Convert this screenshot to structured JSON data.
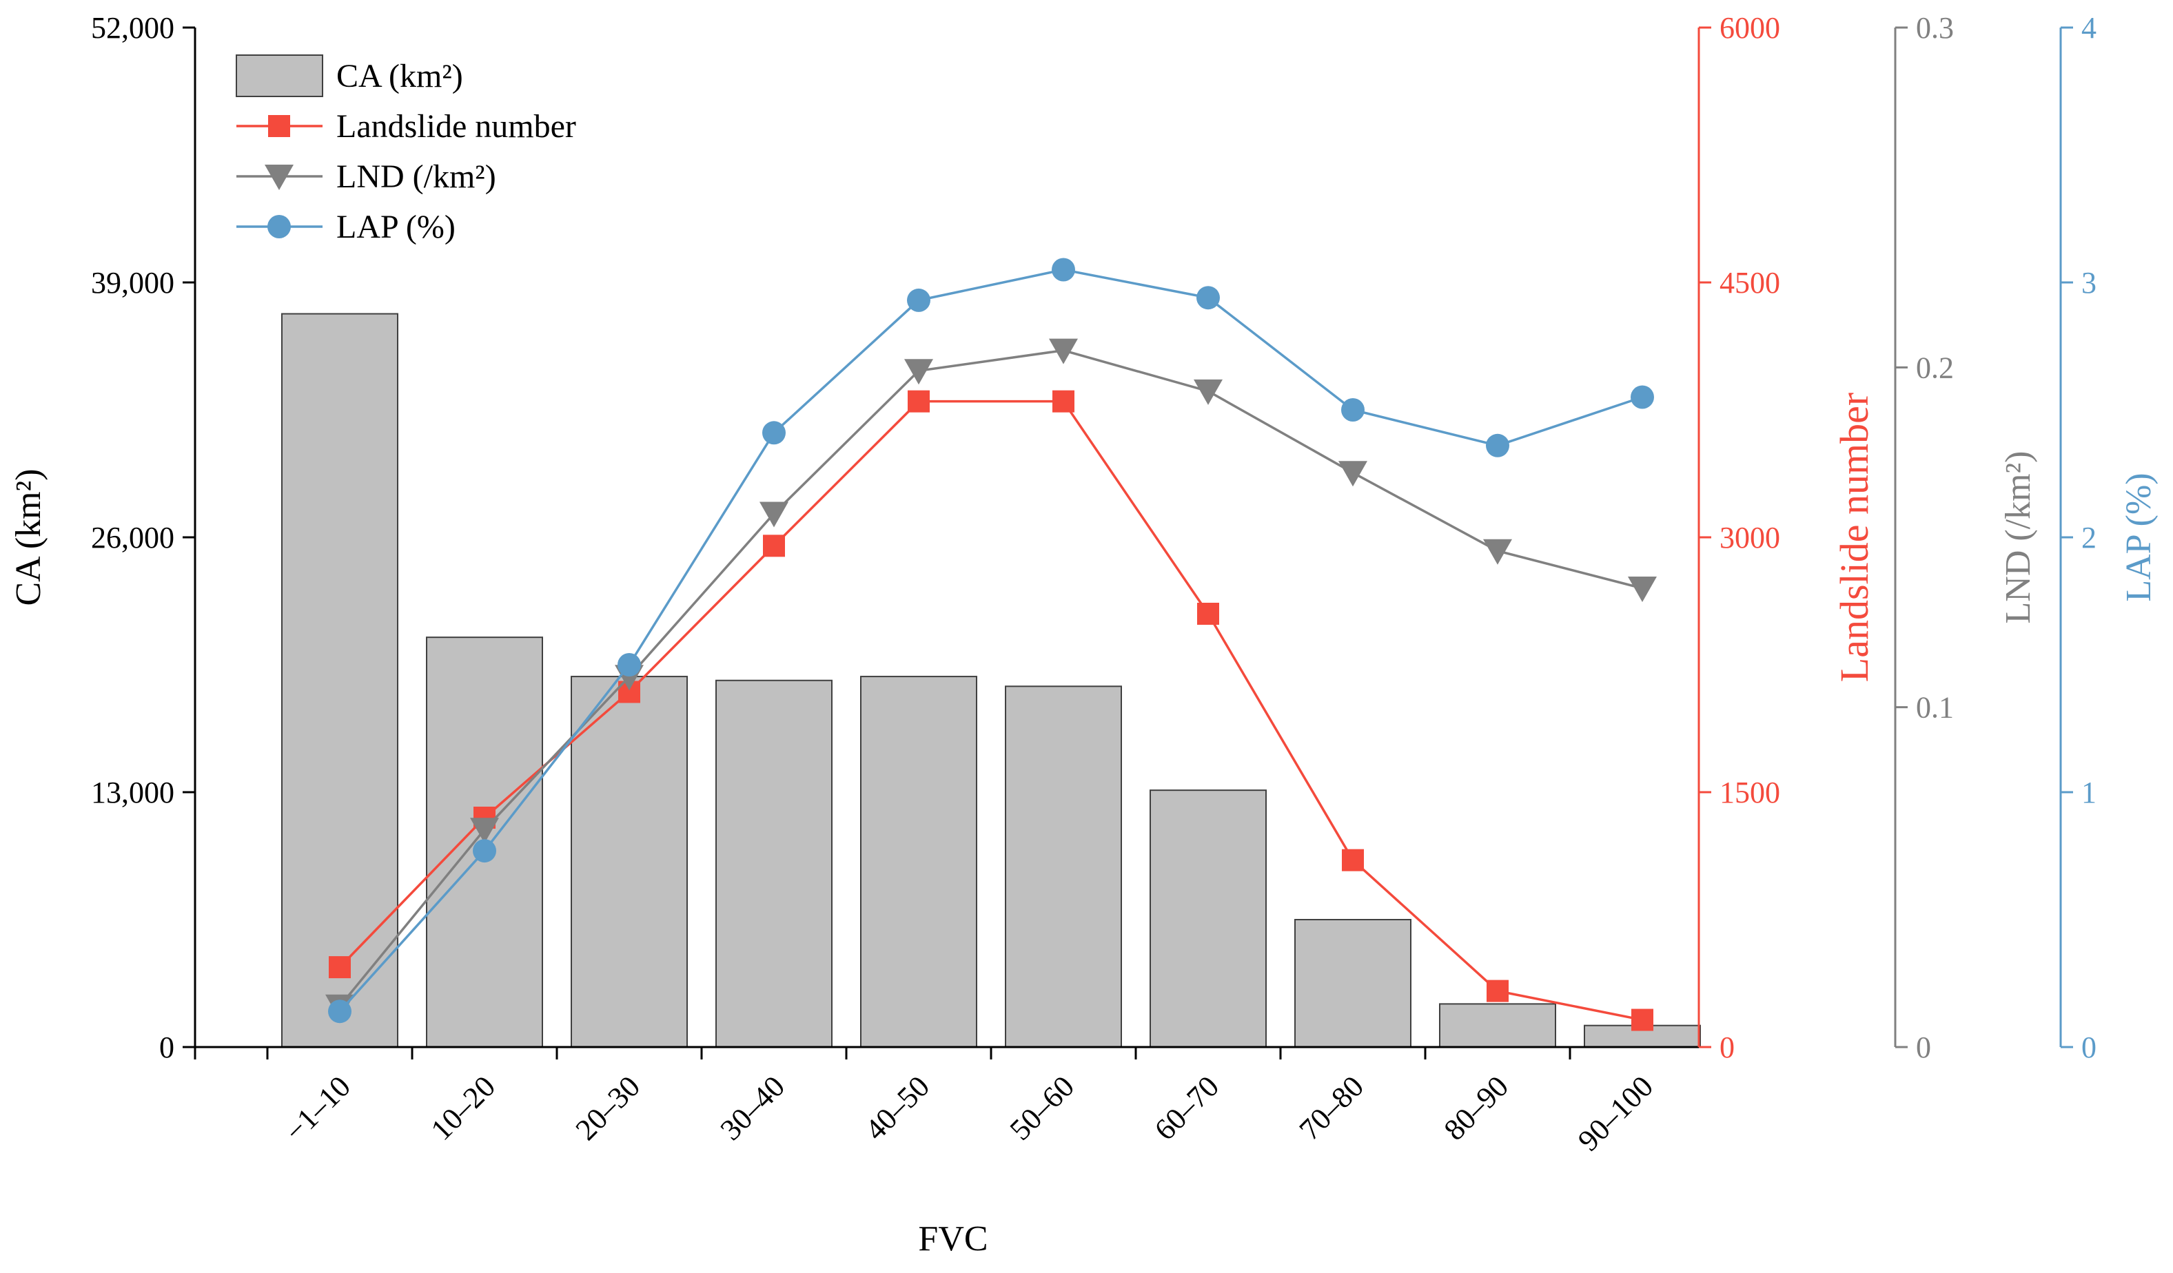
{
  "chart_data": {
    "type": "bar+line",
    "categories": [
      "−1–10",
      "10–20",
      "20–30",
      "30–40",
      "40–50",
      "50–60",
      "60–70",
      "70–80",
      "80–90",
      "90–100"
    ],
    "xlabel": "FVC",
    "series": [
      {
        "name": "CA (km²)",
        "kind": "bar",
        "axis": "ca",
        "color": "#c0c0c0",
        "values": [
          37400,
          20900,
          18900,
          18700,
          18900,
          18400,
          13100,
          6500,
          2200,
          1100
        ]
      },
      {
        "name": "Landslide number",
        "kind": "line",
        "marker": "square",
        "axis": "num",
        "color": "#f44a3c",
        "values": [
          470,
          1350,
          2090,
          2950,
          3800,
          3800,
          2550,
          1100,
          330,
          160
        ]
      },
      {
        "name": "LND (/km²)",
        "kind": "line",
        "marker": "triangle-down",
        "axis": "lnd",
        "color": "#808080",
        "values": [
          0.012,
          0.064,
          0.109,
          0.157,
          0.199,
          0.205,
          0.193,
          0.169,
          0.146,
          0.135
        ]
      },
      {
        "name": "LAP (%)",
        "kind": "line",
        "marker": "circle",
        "axis": "lap",
        "color": "#5b9bc9",
        "values": [
          0.14,
          0.77,
          1.5,
          2.41,
          2.93,
          3.05,
          2.94,
          2.5,
          2.36,
          2.55
        ]
      }
    ],
    "axes": {
      "ca": {
        "title": "CA (km²)",
        "ylim": [
          0,
          52000
        ],
        "ticks": [
          0,
          13000,
          26000,
          39000,
          52000
        ],
        "tick_labels": [
          "0",
          "13,000",
          "26,000",
          "39,000",
          "52,000"
        ],
        "color": "#000000"
      },
      "num": {
        "title": "Landslide number",
        "ylim": [
          0,
          6000
        ],
        "ticks": [
          0,
          1500,
          3000,
          4500,
          6000
        ],
        "tick_labels": [
          "0",
          "1500",
          "3000",
          "4500",
          "6000"
        ],
        "color": "#f44a3c"
      },
      "lnd": {
        "title": "LND (/km²)",
        "ylim": [
          0,
          0.3
        ],
        "ticks": [
          0,
          0.1,
          0.2,
          0.3
        ],
        "tick_labels": [
          "0",
          "0.1",
          "0.2",
          "0.3"
        ],
        "color": "#808080"
      },
      "lap": {
        "title": "LAP (%)",
        "ylim": [
          0,
          4
        ],
        "ticks": [
          0,
          1,
          2,
          3,
          4
        ],
        "tick_labels": [
          "0",
          "1",
          "2",
          "3",
          "4"
        ],
        "color": "#5b9bc9"
      }
    },
    "legend": {
      "position": "top-left",
      "entries": [
        "CA (km²)",
        "Landslide number",
        "LND (/km²)",
        "LAP (%)"
      ]
    }
  }
}
